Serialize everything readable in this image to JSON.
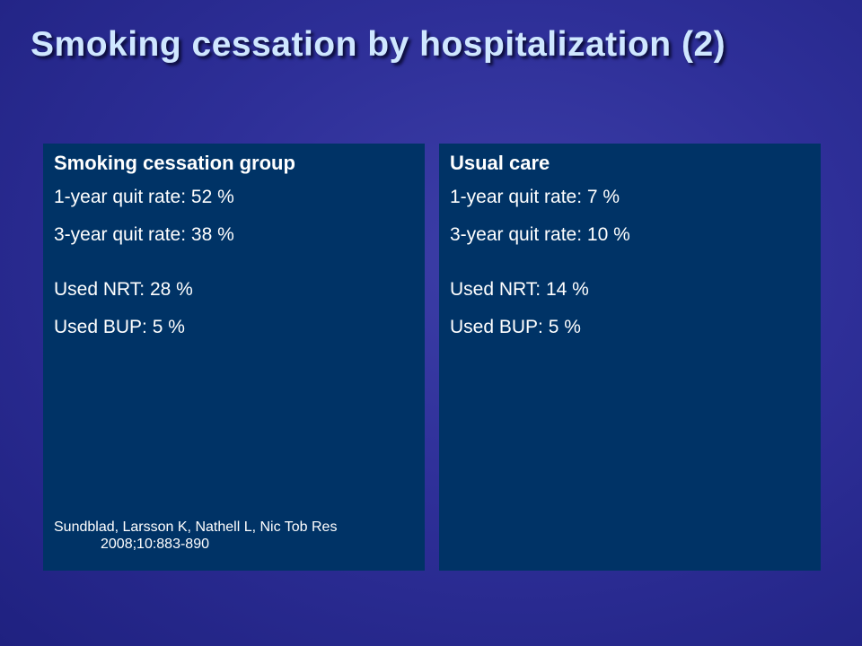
{
  "slide": {
    "title": "Smoking cessation by hospitalization (2)"
  },
  "panels": {
    "left": {
      "heading": "Smoking cessation group",
      "quit_rate_1yr": "1-year quit rate: 52 %",
      "quit_rate_3yr": "3-year quit rate: 38 %",
      "used_nrt": "Used NRT: 28 %",
      "used_bup": "Used BUP: 5 %",
      "reference": "Sundblad, Larsson K, Nathell L, Nic Tob Res 2008;10:883-890"
    },
    "right": {
      "heading": "Usual care",
      "quit_rate_1yr": "1-year quit rate: 7 %",
      "quit_rate_3yr": "3-year quit rate: 10 %",
      "used_nrt": "Used NRT: 14 %",
      "used_bup": "Used BUP: 5 %"
    }
  },
  "colors": {
    "background": "#2e2f98",
    "title": "#cfe7ff",
    "panel": "#003366",
    "text": "#ffffff"
  }
}
